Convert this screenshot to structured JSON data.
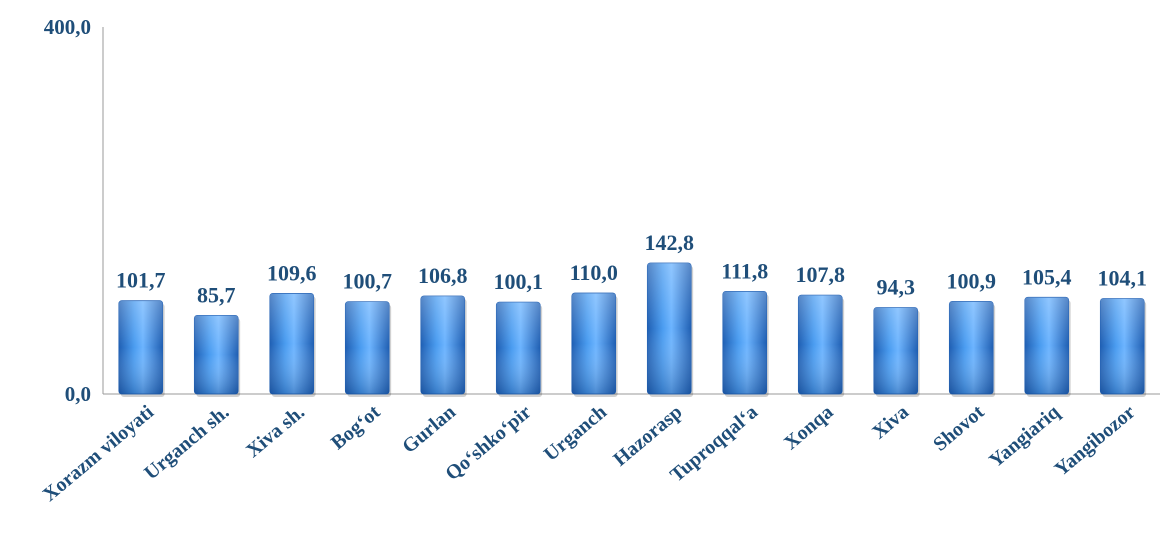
{
  "chart_data": {
    "type": "bar",
    "categories": [
      "Xorazm viloyati",
      "Urganch sh.",
      "Xiva sh.",
      "Bog‘ot",
      "Gurlan",
      "Qo‘shko‘pir",
      "Urganch",
      "Hazorasp",
      "Tuproqqal‘a",
      "Xonqa",
      "Xiva",
      "Shovot",
      "Yangiariq",
      "Yangibozor"
    ],
    "values": [
      101.7,
      85.7,
      109.6,
      100.7,
      106.8,
      100.1,
      110.0,
      142.8,
      111.8,
      107.8,
      94.3,
      100.9,
      105.4,
      104.1
    ],
    "value_labels": [
      "101,7",
      "85,7",
      "109,6",
      "100,7",
      "106,8",
      "100,1",
      "110,0",
      "142,8",
      "111,8",
      "107,8",
      "94,3",
      "100,9",
      "105,4",
      "104,1"
    ],
    "ylim": [
      0,
      400
    ],
    "y_ticks": [
      {
        "value": 0,
        "label": "0,0"
      },
      {
        "value": 400,
        "label": "400,0"
      }
    ],
    "grid": false,
    "legend": "none",
    "bar_color": "#3c8ee6",
    "bar_color_dark": "#1f5fb3",
    "label_color": "#1f4e79",
    "axis_color": "#9a9a9a"
  }
}
